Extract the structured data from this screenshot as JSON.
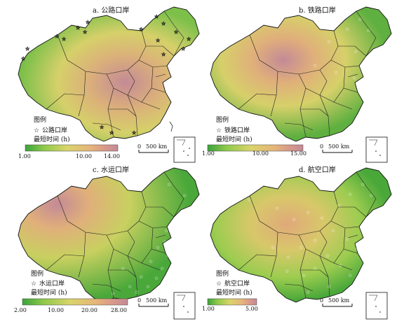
{
  "panels": [
    {
      "title": "a. 公路口岸",
      "legend_heading": "图例",
      "legend_item": "公路口岸",
      "legend_metric": "最短时间 (h)",
      "scale_ticks": [
        "1.00",
        "10.00",
        "14.00"
      ],
      "scale_bar": [
        "0",
        "500 km"
      ],
      "color_ramp": [
        "#3aa33a",
        "#8fc94a",
        "#d9d46a",
        "#e6b57a",
        "#d99a8a",
        "#c48a96"
      ],
      "port_symbol": "star-icon"
    },
    {
      "title": "b. 铁路口岸",
      "legend_heading": "图例",
      "legend_item": "铁路口岸",
      "legend_metric": "最短时间 (h)",
      "scale_ticks": [
        "1.00",
        "10.00",
        "15.00"
      ],
      "scale_bar": [
        "0",
        "500 km"
      ],
      "color_ramp": [
        "#3aa33a",
        "#8fc94a",
        "#d9d46a",
        "#e6b57a",
        "#d99a8a",
        "#c48a96"
      ],
      "port_symbol": "star-icon"
    },
    {
      "title": "c. 水运口岸",
      "legend_heading": "图例",
      "legend_item": "水运口岸",
      "legend_metric": "最短时间 (h)",
      "scale_ticks": [
        "2.00",
        "10.00",
        "20.00",
        "28.00"
      ],
      "scale_bar": [
        "0",
        "500 km"
      ],
      "color_ramp": [
        "#3aa33a",
        "#8fc94a",
        "#d9d46a",
        "#e6b57a",
        "#d99a8a",
        "#c48a96"
      ],
      "port_symbol": "star-icon"
    },
    {
      "title": "d. 航空口岸",
      "legend_heading": "图例",
      "legend_item": "航空口岸",
      "legend_metric": "最短时间 (h)",
      "scale_ticks": [
        "1.00",
        "5.00"
      ],
      "scale_bar": [
        "0",
        "500 km"
      ],
      "color_ramp": [
        "#3aa33a",
        "#8fc94a",
        "#d9d46a",
        "#e6b57a",
        "#d99a8a",
        "#c48a96"
      ],
      "port_symbol": "star-icon"
    }
  ]
}
